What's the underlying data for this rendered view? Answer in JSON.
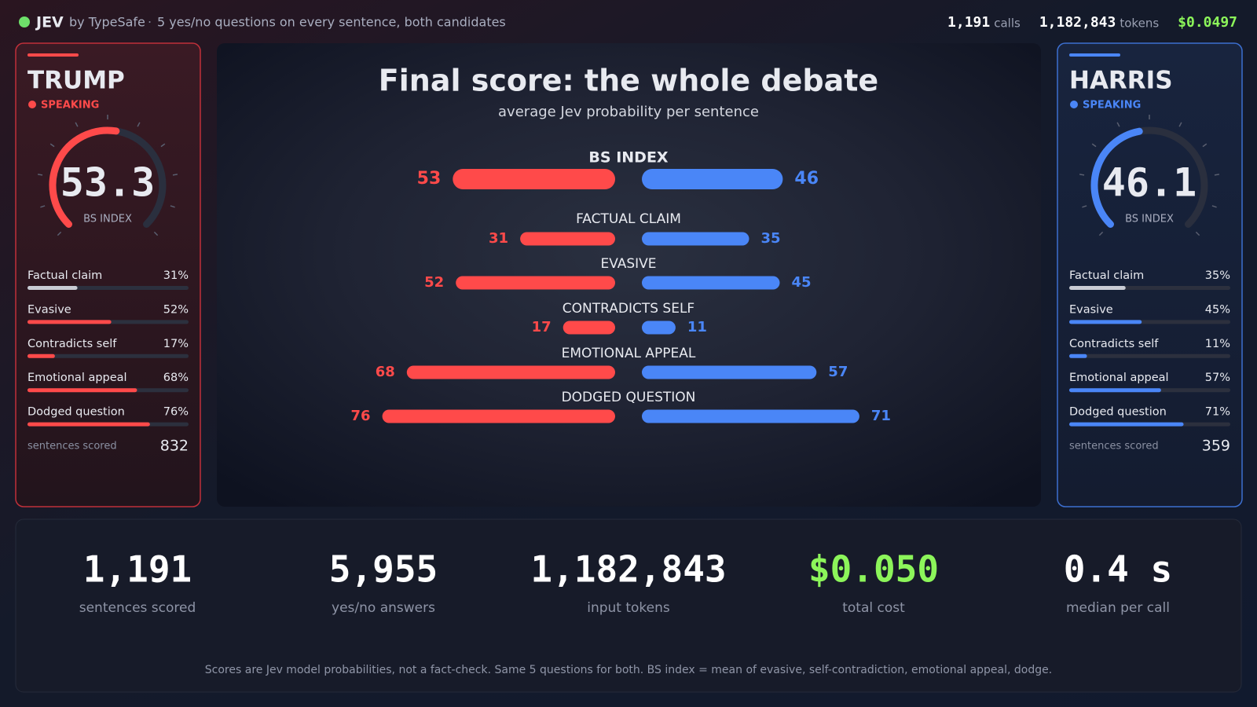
{
  "header": {
    "brand": "JEV",
    "byline": "by TypeSafe",
    "tagline": "5 yes/no questions on every sentence, both candidates",
    "stats": [
      {
        "value": "1,191",
        "unit": "calls"
      },
      {
        "value": "1,182,843",
        "unit": "tokens"
      },
      {
        "value": "$0.0497",
        "color": "#8cf55a"
      }
    ]
  },
  "scale": [
    0,
    100
  ],
  "candidates": [
    {
      "name": "TRUMP",
      "status": "SPEAKING",
      "color": "#ff4a4a",
      "score": 53.3,
      "score_label": "BS INDEX",
      "metrics": [
        {
          "label": "Factual claim",
          "value": 31,
          "value_label": "31%"
        },
        {
          "label": "Evasive",
          "value": 52,
          "value_label": "52%"
        },
        {
          "label": "Contradicts self",
          "value": 17,
          "value_label": "17%"
        },
        {
          "label": "Emotional appeal",
          "value": 68,
          "value_label": "68%"
        },
        {
          "label": "Dodged question",
          "value": 76,
          "value_label": "76%"
        }
      ],
      "count_label": "sentences scored",
      "count": 832
    },
    {
      "name": "HARRIS",
      "status": "SPEAKING",
      "color": "#4a86f7",
      "score": 46.1,
      "score_label": "BS INDEX",
      "metrics": [
        {
          "label": "Factual claim",
          "value": 35,
          "value_label": "35%"
        },
        {
          "label": "Evasive",
          "value": 45,
          "value_label": "45%"
        },
        {
          "label": "Contradicts self",
          "value": 11,
          "value_label": "11%"
        },
        {
          "label": "Emotional appeal",
          "value": 57,
          "value_label": "57%"
        },
        {
          "label": "Dodged question",
          "value": 71,
          "value_label": "71%"
        }
      ],
      "count_label": "sentences scored",
      "count": 359
    }
  ],
  "comparison": {
    "title": "Final score: the whole debate",
    "subtitle": "average Jev probability per sentence",
    "rows": [
      {
        "label": "BS INDEX",
        "values": [
          53,
          46
        ]
      },
      {
        "label": "FACTUAL CLAIM",
        "values": [
          31,
          35
        ]
      },
      {
        "label": "EVASIVE",
        "values": [
          52,
          45
        ]
      },
      {
        "label": "CONTRADICTS SELF",
        "values": [
          17,
          11
        ]
      },
      {
        "label": "EMOTIONAL APPEAL",
        "values": [
          68,
          57
        ]
      },
      {
        "label": "DODGED QUESTION",
        "values": [
          76,
          71
        ]
      }
    ]
  },
  "summary": [
    {
      "value": "1,191",
      "label": "sentences scored"
    },
    {
      "value": "5,955",
      "label": "yes/no answers"
    },
    {
      "value": "1,182,843",
      "label": "input tokens"
    },
    {
      "value": "$0.050",
      "label": "total cost",
      "color": "#8cf55a"
    },
    {
      "value": "0.4 s",
      "label": "median per call"
    }
  ],
  "footnote": "Scores are Jev model probabilities, not a fact-check. Same 5 questions for both. BS index = mean of evasive, self-contradiction, emotional appeal, dodge."
}
